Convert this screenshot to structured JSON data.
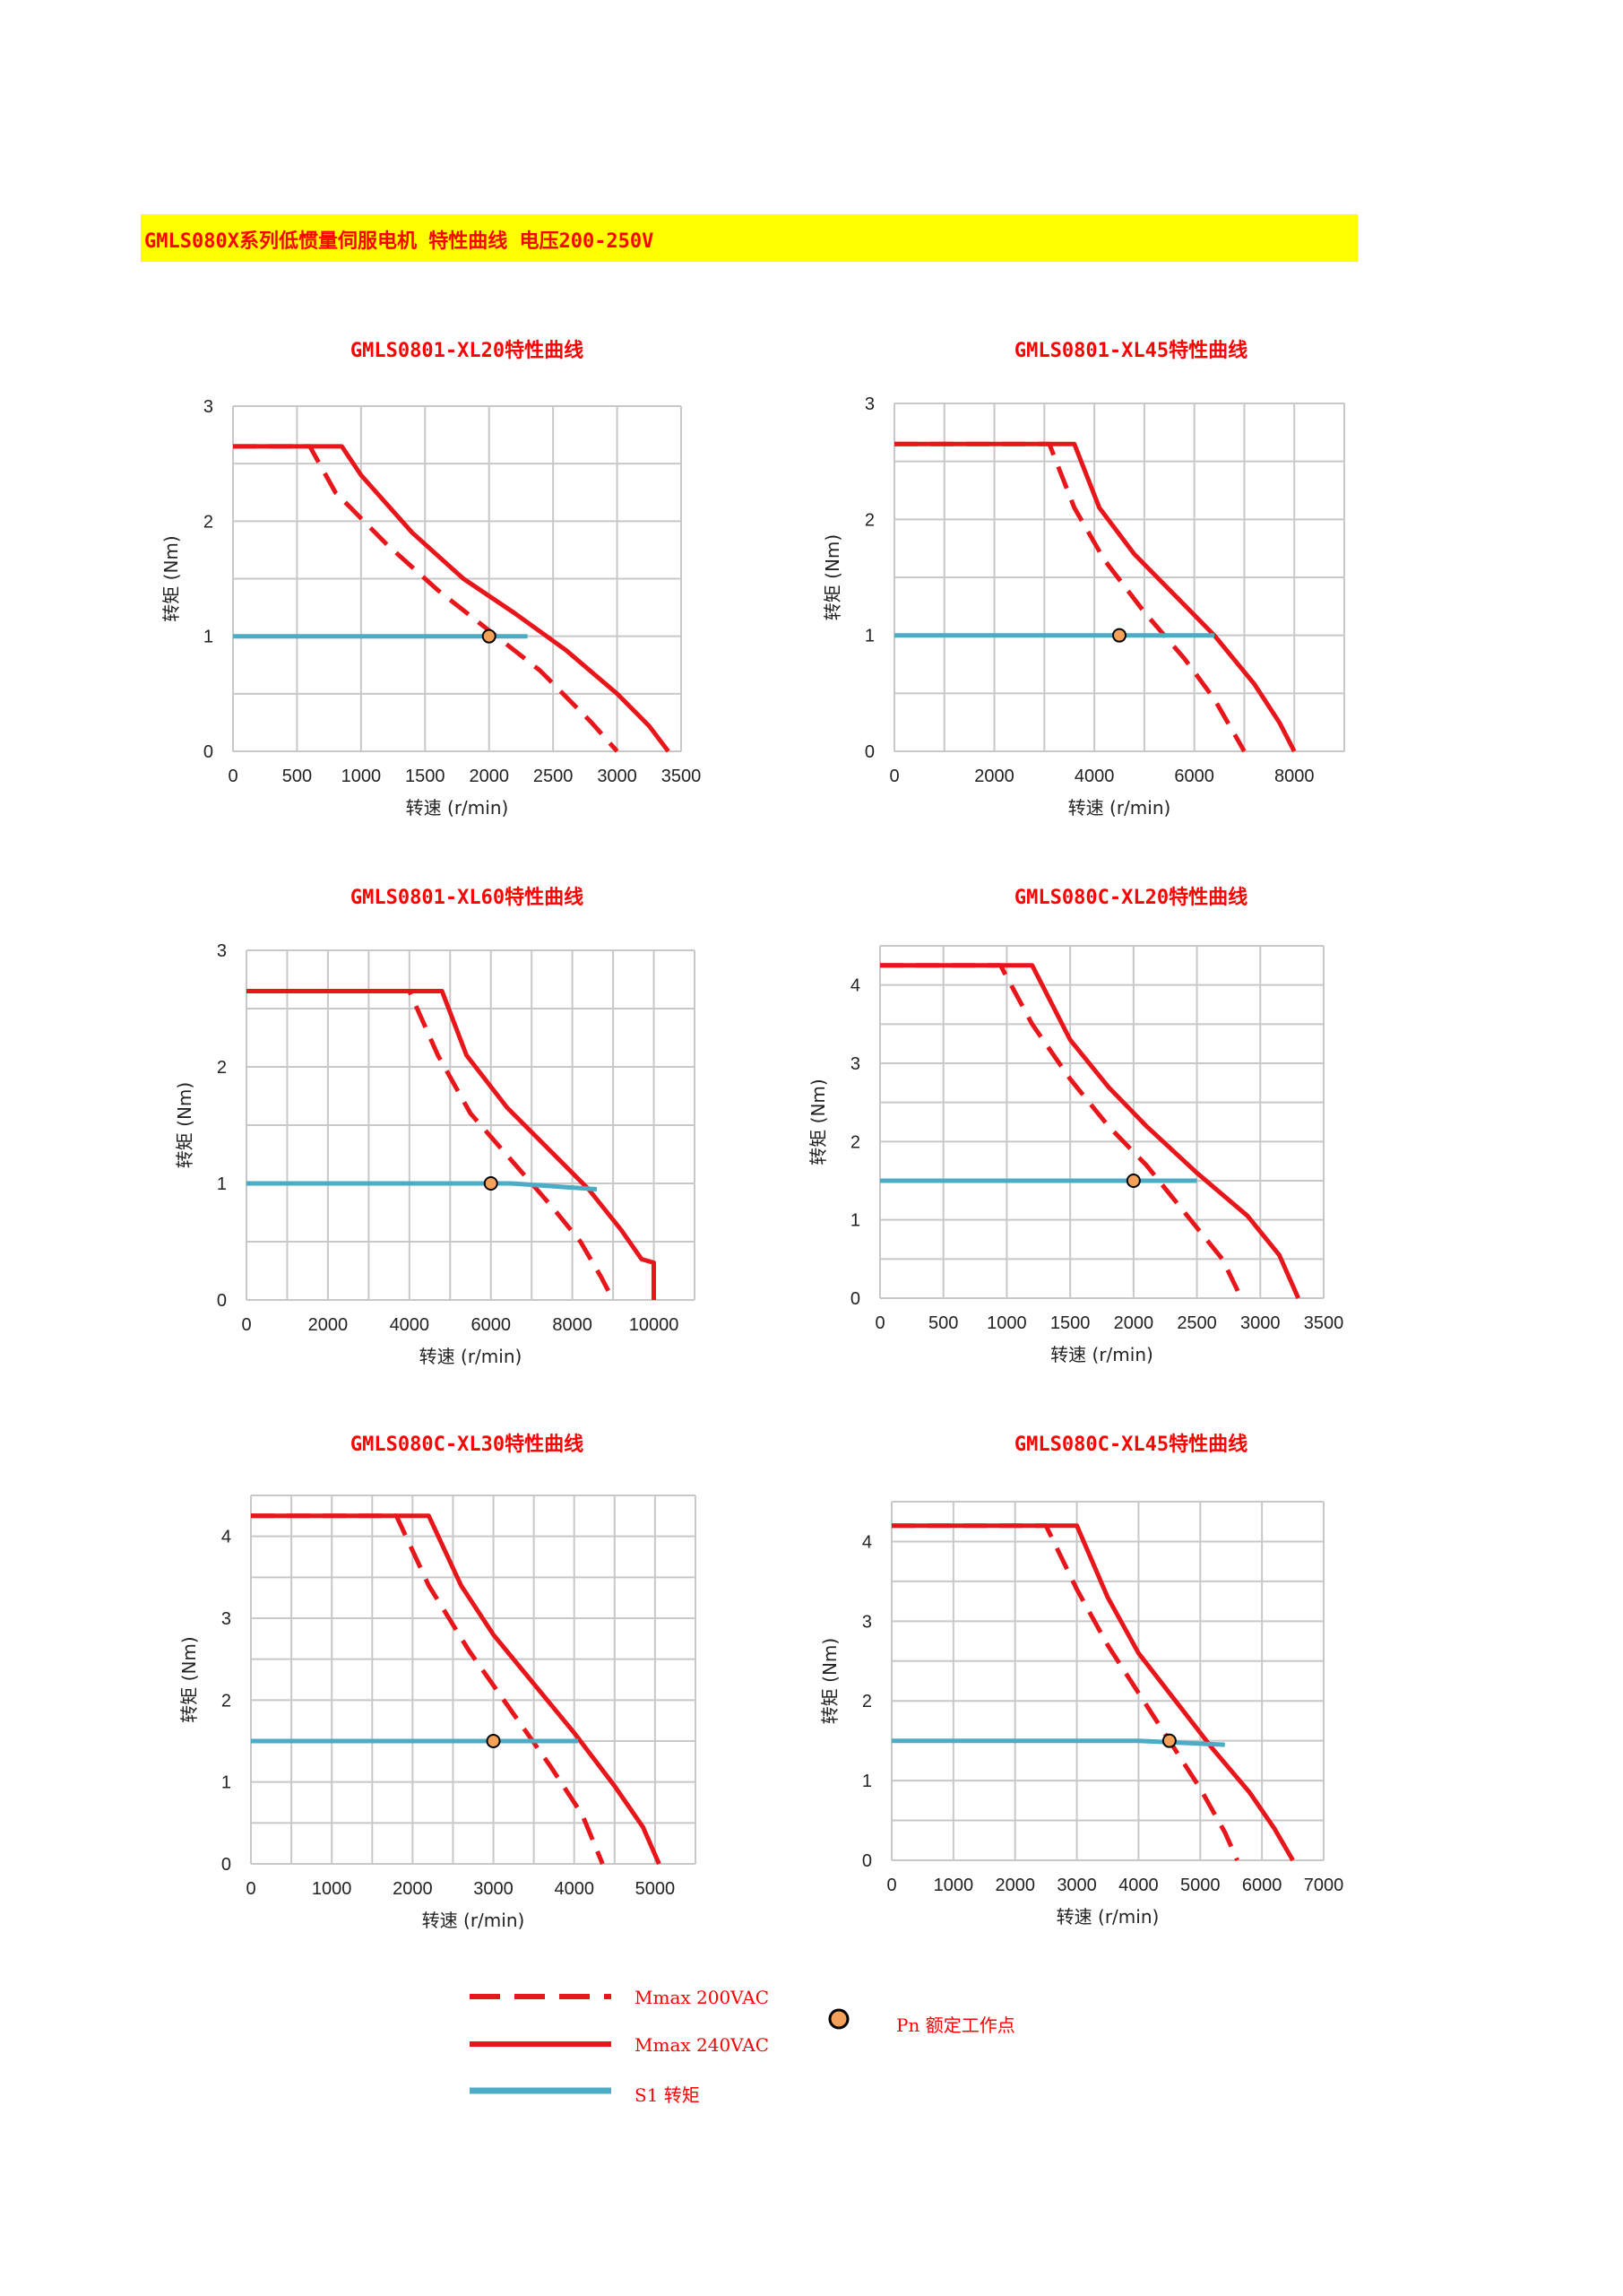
{
  "header": {
    "title": "GMLS080X系列低惯量伺服电机 特性曲线 电压200-250V"
  },
  "colors": {
    "curve": "#e8161b",
    "s1": "#4bacc6",
    "point_fill": "#f4a25a",
    "grid": "#c8c8c8",
    "title": "#ff0000",
    "banner": "#ffff00"
  },
  "chart_data": [
    {
      "type": "line",
      "title": "GMLS0801-XL20特性曲线",
      "xlabel": "转速 (r/min)",
      "ylabel": "转矩 (Nm)",
      "xlim": [
        0,
        3500
      ],
      "ylim": [
        0,
        3
      ],
      "xticks": [
        0,
        500,
        1000,
        1500,
        2000,
        2500,
        3000,
        3500
      ],
      "yticks": [
        0,
        1,
        2,
        3
      ],
      "xgrid": [
        0,
        500,
        1000,
        1500,
        2000,
        2500,
        3000,
        3500
      ],
      "ygrid": [
        0,
        0.5,
        1,
        1.5,
        2,
        2.5,
        3
      ],
      "grid": true,
      "series": [
        {
          "name": "Mmax 200VAC",
          "style": "dashed",
          "x": [
            0,
            600,
            800,
            1200,
            1600,
            2000,
            2400,
            2800,
            3000
          ],
          "y": [
            2.65,
            2.65,
            2.25,
            1.8,
            1.4,
            1.05,
            0.7,
            0.25,
            0
          ]
        },
        {
          "name": "Mmax 240VAC",
          "style": "solid",
          "x": [
            0,
            850,
            1000,
            1400,
            1800,
            2200,
            2600,
            3000,
            3250,
            3400
          ],
          "y": [
            2.65,
            2.65,
            2.4,
            1.9,
            1.5,
            1.2,
            0.88,
            0.5,
            0.22,
            0
          ]
        },
        {
          "name": "S1 转矩",
          "style": "s1",
          "x": [
            0,
            2300
          ],
          "y": [
            1,
            1
          ]
        }
      ],
      "rated_point": {
        "x": 2000,
        "y": 1
      }
    },
    {
      "type": "line",
      "title": "GMLS0801-XL45特性曲线",
      "xlabel": "转速 (r/min)",
      "ylabel": "转矩 (Nm)",
      "xlim": [
        0,
        9000
      ],
      "ylim": [
        0,
        3
      ],
      "xticks": [
        0,
        2000,
        4000,
        6000,
        8000
      ],
      "yticks": [
        0,
        1,
        2,
        3
      ],
      "xgrid": [
        0,
        1000,
        2000,
        3000,
        4000,
        5000,
        6000,
        7000,
        8000,
        9000
      ],
      "ygrid": [
        0,
        0.5,
        1,
        1.5,
        2,
        2.5,
        3
      ],
      "grid": true,
      "series": [
        {
          "name": "Mmax 200VAC",
          "style": "dashed",
          "x": [
            0,
            3100,
            3600,
            4200,
            5000,
            5800,
            6400,
            6800,
            7000
          ],
          "y": [
            2.65,
            2.65,
            2.1,
            1.65,
            1.2,
            0.8,
            0.45,
            0.15,
            0
          ]
        },
        {
          "name": "Mmax 240VAC",
          "style": "solid",
          "x": [
            0,
            3600,
            4100,
            4800,
            5600,
            6400,
            7200,
            7700,
            8000
          ],
          "y": [
            2.65,
            2.65,
            2.1,
            1.7,
            1.35,
            1.0,
            0.58,
            0.25,
            0
          ]
        },
        {
          "name": "S1 转矩",
          "style": "s1",
          "x": [
            0,
            6400
          ],
          "y": [
            1,
            1
          ]
        }
      ],
      "rated_point": {
        "x": 4500,
        "y": 1
      }
    },
    {
      "type": "line",
      "title": "GMLS0801-XL60特性曲线",
      "xlabel": "转速 (r/min)",
      "ylabel": "转矩 (Nm)",
      "xlim": [
        0,
        11000
      ],
      "ylim": [
        0,
        3
      ],
      "xticks": [
        0,
        2000,
        4000,
        6000,
        8000,
        10000
      ],
      "yticks": [
        0,
        1,
        2,
        3
      ],
      "xgrid": [
        0,
        1000,
        2000,
        3000,
        4000,
        5000,
        6000,
        7000,
        8000,
        9000,
        10000,
        11000
      ],
      "ygrid": [
        0,
        0.5,
        1,
        1.5,
        2,
        2.5,
        3
      ],
      "grid": true,
      "series": [
        {
          "name": "Mmax 200VAC",
          "style": "dashed",
          "x": [
            0,
            4000,
            4700,
            5500,
            6500,
            7500,
            8200,
            8700,
            9000
          ],
          "y": [
            2.65,
            2.65,
            2.1,
            1.6,
            1.2,
            0.8,
            0.5,
            0.2,
            0
          ]
        },
        {
          "name": "Mmax 240VAC",
          "style": "solid",
          "x": [
            0,
            4800,
            5400,
            6400,
            7400,
            8400,
            9200,
            9700,
            10000,
            10000
          ],
          "y": [
            2.65,
            2.65,
            2.1,
            1.65,
            1.3,
            0.95,
            0.6,
            0.35,
            0.32,
            0
          ]
        },
        {
          "name": "S1 转矩",
          "style": "s1",
          "x": [
            0,
            6500,
            8600
          ],
          "y": [
            1,
            1,
            0.95
          ]
        }
      ],
      "rated_point": {
        "x": 6000,
        "y": 1
      }
    },
    {
      "type": "line",
      "title": "GMLS080C-XL20特性曲线",
      "xlabel": "转速 (r/min)",
      "ylabel": "转矩 (Nm)",
      "xlim": [
        0,
        3500
      ],
      "ylim": [
        0,
        4.5
      ],
      "xticks": [
        0,
        500,
        1000,
        1500,
        2000,
        2500,
        3000,
        3500
      ],
      "yticks": [
        0,
        1,
        2,
        3,
        4
      ],
      "xgrid": [
        0,
        500,
        1000,
        1500,
        2000,
        2500,
        3000,
        3500
      ],
      "ygrid": [
        0,
        0.5,
        1,
        1.5,
        2,
        2.5,
        3,
        3.5,
        4,
        4.5
      ],
      "grid": true,
      "series": [
        {
          "name": "Mmax 200VAC",
          "style": "dashed",
          "x": [
            0,
            950,
            1200,
            1500,
            1800,
            2100,
            2400,
            2700,
            2850
          ],
          "y": [
            4.25,
            4.25,
            3.5,
            2.8,
            2.2,
            1.7,
            1.1,
            0.5,
            0
          ]
        },
        {
          "name": "Mmax 240VAC",
          "style": "solid",
          "x": [
            0,
            1200,
            1500,
            1800,
            2100,
            2500,
            2900,
            3150,
            3300
          ],
          "y": [
            4.25,
            4.25,
            3.3,
            2.7,
            2.2,
            1.6,
            1.05,
            0.55,
            0
          ]
        },
        {
          "name": "S1 转矩",
          "style": "s1",
          "x": [
            0,
            2500
          ],
          "y": [
            1.5,
            1.5
          ]
        }
      ],
      "rated_point": {
        "x": 2000,
        "y": 1.5
      }
    },
    {
      "type": "line",
      "title": "GMLS080C-XL30特性曲线",
      "xlabel": "转速 (r/min)",
      "ylabel": "转矩 (Nm)",
      "xlim": [
        0,
        5500
      ],
      "ylim": [
        0,
        4.5
      ],
      "xticks": [
        0,
        1000,
        2000,
        3000,
        4000,
        5000
      ],
      "yticks": [
        0,
        1,
        2,
        3,
        4
      ],
      "xgrid": [
        0,
        500,
        1000,
        1500,
        2000,
        2500,
        3000,
        3500,
        4000,
        4500,
        5000,
        5500
      ],
      "ygrid": [
        0,
        0.5,
        1,
        1.5,
        2,
        2.5,
        3,
        3.5,
        4,
        4.5
      ],
      "grid": true,
      "series": [
        {
          "name": "Mmax 200VAC",
          "style": "dashed",
          "x": [
            0,
            1800,
            2200,
            2700,
            3200,
            3700,
            4100,
            4350
          ],
          "y": [
            4.25,
            4.25,
            3.4,
            2.6,
            1.9,
            1.2,
            0.6,
            0
          ]
        },
        {
          "name": "Mmax 240VAC",
          "style": "solid",
          "x": [
            0,
            2200,
            2600,
            3000,
            3500,
            4000,
            4500,
            4850,
            5050
          ],
          "y": [
            4.25,
            4.25,
            3.4,
            2.8,
            2.2,
            1.6,
            0.95,
            0.45,
            0
          ]
        },
        {
          "name": "S1 转矩",
          "style": "s1",
          "x": [
            0,
            4050
          ],
          "y": [
            1.5,
            1.5
          ]
        }
      ],
      "rated_point": {
        "x": 3000,
        "y": 1.5
      }
    },
    {
      "type": "line",
      "title": "GMLS080C-XL45特性曲线",
      "xlabel": "转速 (r/min)",
      "ylabel": "转矩 (Nm)",
      "xlim": [
        0,
        7000
      ],
      "ylim": [
        0,
        4.5
      ],
      "xticks": [
        0,
        1000,
        2000,
        3000,
        4000,
        5000,
        6000,
        7000
      ],
      "yticks": [
        0,
        1,
        2,
        3,
        4
      ],
      "xgrid": [
        0,
        1000,
        2000,
        3000,
        4000,
        5000,
        6000,
        7000
      ],
      "ygrid": [
        0,
        0.5,
        1,
        1.5,
        2,
        2.5,
        3,
        3.5,
        4,
        4.5
      ],
      "grid": true,
      "series": [
        {
          "name": "Mmax 200VAC",
          "style": "dashed",
          "x": [
            0,
            2500,
            3000,
            3500,
            4000,
            4500,
            5000,
            5400,
            5600
          ],
          "y": [
            4.2,
            4.2,
            3.4,
            2.7,
            2.1,
            1.5,
            0.9,
            0.35,
            0
          ]
        },
        {
          "name": "Mmax 240VAC",
          "style": "solid",
          "x": [
            0,
            3000,
            3500,
            4000,
            4600,
            5200,
            5800,
            6200,
            6500
          ],
          "y": [
            4.2,
            4.2,
            3.3,
            2.6,
            2.0,
            1.4,
            0.85,
            0.4,
            0
          ]
        },
        {
          "name": "S1 转矩",
          "style": "s1",
          "x": [
            0,
            4000,
            5400
          ],
          "y": [
            1.5,
            1.5,
            1.45
          ]
        }
      ],
      "rated_point": {
        "x": 4500,
        "y": 1.5
      }
    }
  ],
  "legend": {
    "mmax200": "Mmax 200VAC",
    "mmax240": "Mmax 240VAC",
    "s1": "S1 转矩",
    "pn": "Pn 额定工作点"
  }
}
